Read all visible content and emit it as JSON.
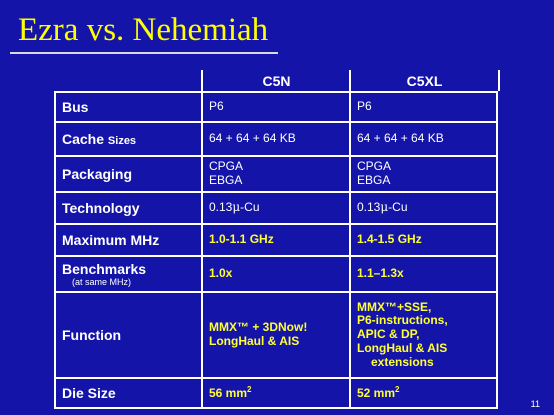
{
  "slide": {
    "title": "Ezra vs. Nehemiah",
    "page_number": "11"
  },
  "columns": [
    "C5N",
    "C5XL"
  ],
  "rows": {
    "bus": {
      "label": "Bus",
      "c5n": "P6",
      "c5xl": "P6"
    },
    "cache": {
      "label_main": "Cache",
      "label_small": "Sizes",
      "c5n": "64 + 64 + 64 KB",
      "c5xl": "64 + 64 + 64 KB"
    },
    "packaging": {
      "label": "Packaging",
      "c5n_line1": "CPGA",
      "c5n_line2": "EBGA",
      "c5xl_line1": "CPGA",
      "c5xl_line2": "EBGA"
    },
    "technology": {
      "label": "Technology",
      "c5n_prefix": "0.13",
      "c5n_unit": "μ",
      "c5n_suffix": "-Cu",
      "c5xl_prefix": "0.13",
      "c5xl_unit": "μ",
      "c5xl_suffix": "-Cu"
    },
    "maxmhz": {
      "label": "Maximum MHz",
      "c5n": "1.0-1.1 GHz",
      "c5xl": "1.4-1.5 GHz"
    },
    "benchmarks": {
      "label": "Benchmarks",
      "note": "(at same MHz)",
      "c5n": "1.0x",
      "c5xl": "1.1–1.3x"
    },
    "function": {
      "label": "Function",
      "c5n_line1": "MMX™ + 3DNow!",
      "c5n_line2": "LongHaul & AIS",
      "c5xl_line1": "MMX™+SSE,",
      "c5xl_line2": "P6-instructions,",
      "c5xl_line3": "APIC & DP,",
      "c5xl_line4": "LongHaul & AIS",
      "c5xl_line5": "extensions"
    },
    "diesize": {
      "label": "Die Size",
      "c5n_value": "56 mm",
      "c5n_exp": "2",
      "c5xl_value": "52 mm",
      "c5xl_exp": "2"
    }
  }
}
